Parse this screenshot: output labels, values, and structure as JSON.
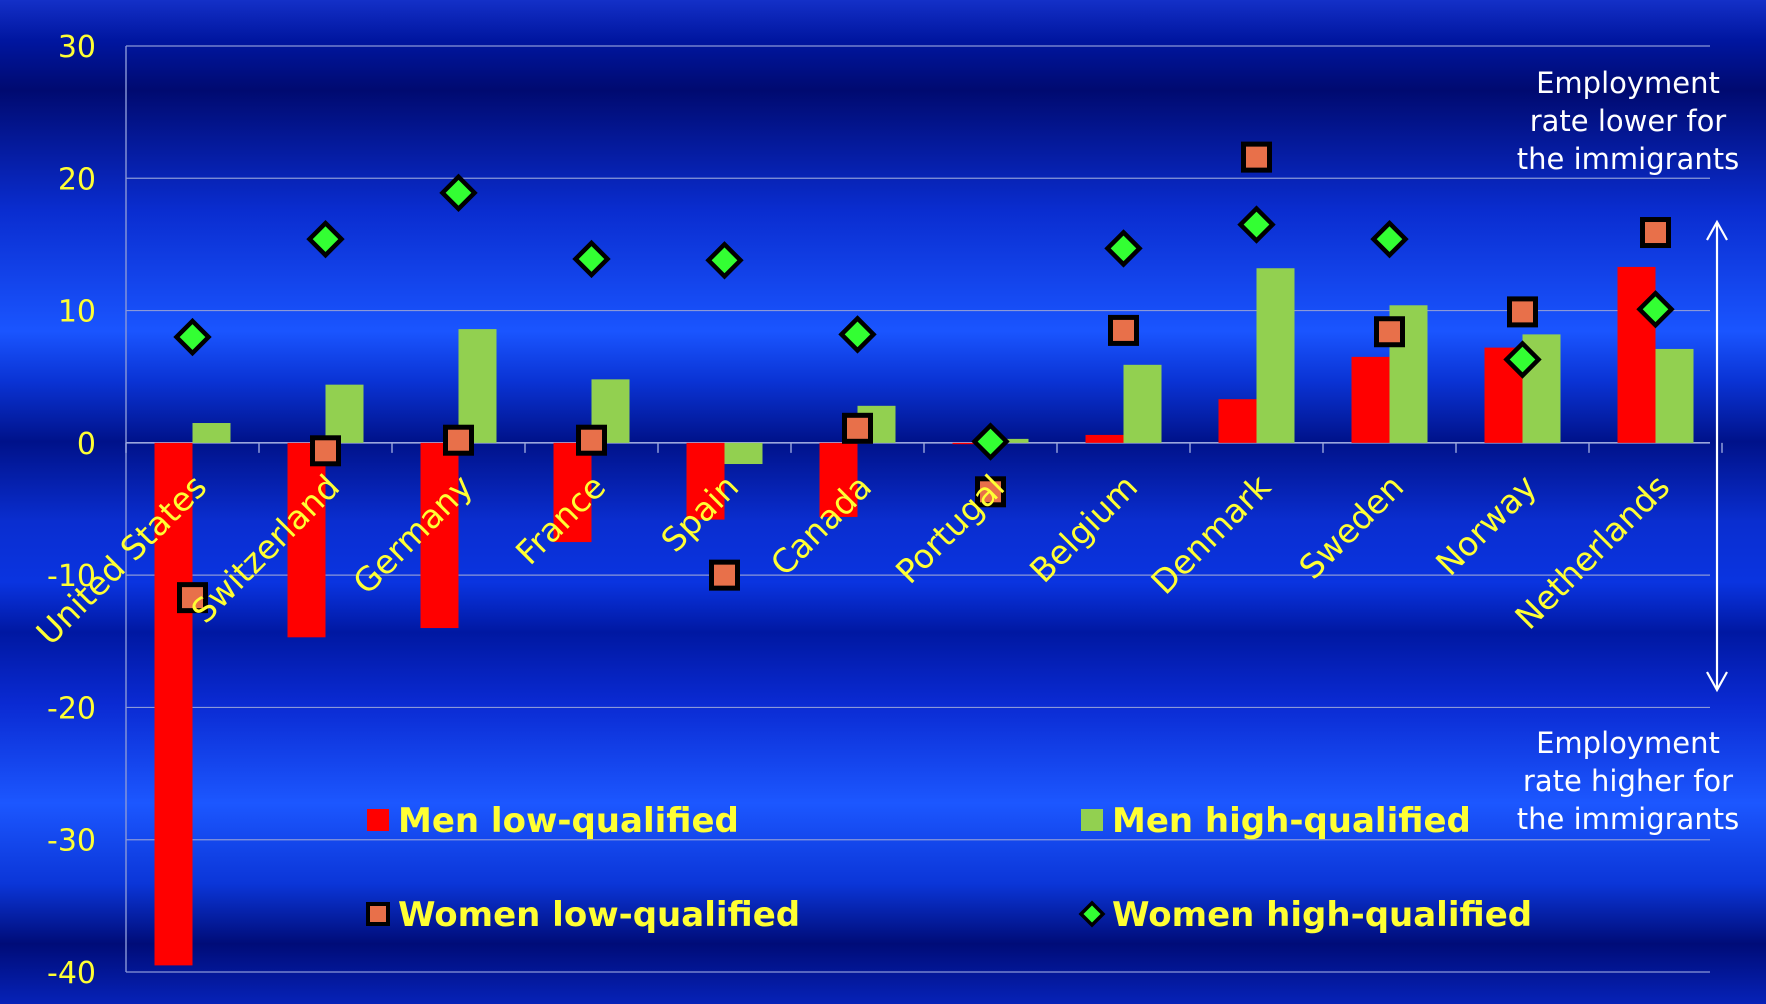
{
  "chart_data": {
    "type": "bar",
    "title": "",
    "xlabel": "",
    "ylabel": "",
    "ylim": [
      -40,
      30
    ],
    "yticks": [
      30,
      20,
      10,
      0,
      -10,
      -20,
      -30,
      -40
    ],
    "grid": true,
    "categories": [
      "United States",
      "Switzerland",
      "Germany",
      "France",
      "Spain",
      "Canada",
      "Portugal",
      "Belgium",
      "Denmark",
      "Sweden",
      "Norway",
      "Netherlands"
    ],
    "series": [
      {
        "name": "Men low-qualified",
        "kind": "bar",
        "color": "#ff0000",
        "values": [
          -39.5,
          -14.7,
          -14.0,
          -7.5,
          -5.8,
          -5.6,
          -0.1,
          0.6,
          3.3,
          6.5,
          7.2,
          13.3
        ]
      },
      {
        "name": "Men high-qualified",
        "kind": "bar",
        "color": "#92d050",
        "values": [
          1.5,
          4.4,
          8.6,
          4.8,
          -1.6,
          2.8,
          0.3,
          5.9,
          13.2,
          10.4,
          8.2,
          7.1
        ]
      },
      {
        "name": "Women low-qualified",
        "kind": "marker-square",
        "color": "#e8704a",
        "values": [
          -11.7,
          -0.6,
          0.2,
          0.2,
          -10.0,
          1.1,
          -3.7,
          8.5,
          21.6,
          8.4,
          9.9,
          15.9
        ]
      },
      {
        "name": "Women high-qualified",
        "kind": "marker-diamond",
        "color": "#33ff33",
        "values": [
          8.0,
          15.4,
          18.9,
          13.9,
          13.8,
          8.2,
          0.1,
          14.7,
          16.5,
          15.4,
          6.3,
          10.1
        ]
      }
    ],
    "legend": {
      "placement": "bottom-center",
      "items": [
        "Men low-qualified",
        "Men high-qualified",
        "Women low-qualified",
        "Women high-qualified"
      ]
    },
    "annotations": [
      {
        "text": "Employment rate lower for the immigrants",
        "position": "top-right",
        "lines": [
          "Employment",
          "rate lower for",
          "the immigrants"
        ]
      },
      {
        "text": "Employment rate higher for the immigrants",
        "position": "bottom-right",
        "lines": [
          "Employment",
          "rate higher for",
          "the immigrants"
        ]
      }
    ]
  }
}
